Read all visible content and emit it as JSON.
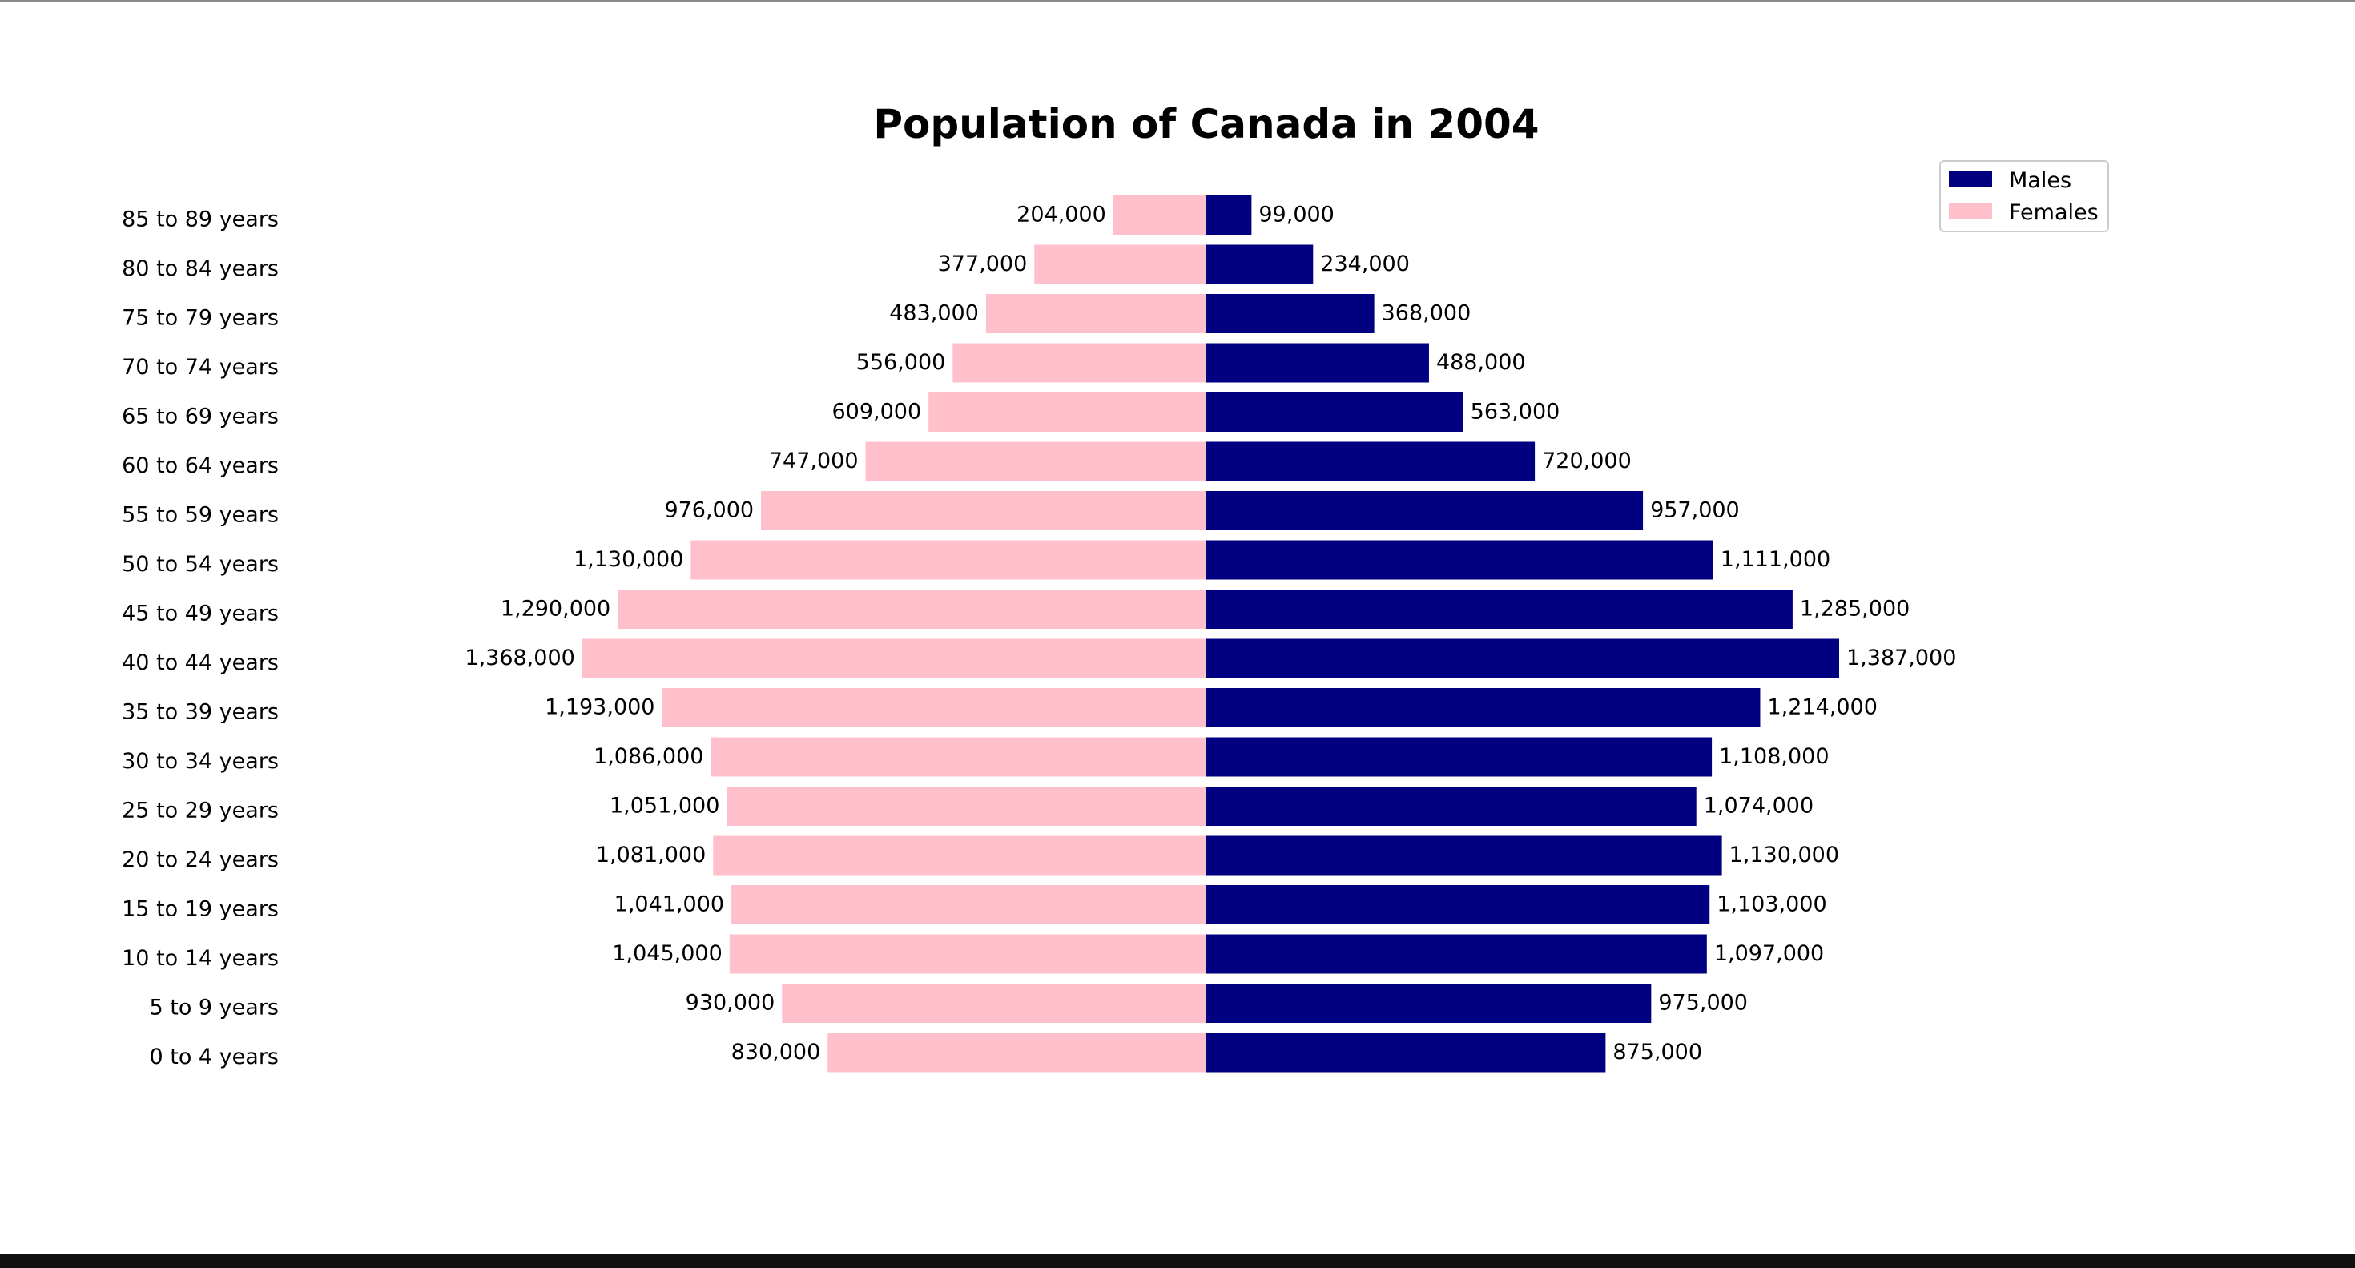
{
  "chart_data": {
    "type": "bar",
    "orientation": "horizontal-diverging",
    "title": "Population of Canada in 2004",
    "categories": [
      "0 to 4 years",
      "5 to 9 years",
      "10 to 14 years",
      "15 to 19 years",
      "20 to 24 years",
      "25 to 29 years",
      "30 to 34 years",
      "35 to 39 years",
      "40 to 44 years",
      "45 to 49 years",
      "50 to 54 years",
      "55 to 59 years",
      "60 to 64 years",
      "65 to 69 years",
      "70 to 74 years",
      "75 to 79 years",
      "80 to 84 years",
      "85 to 89 years"
    ],
    "series": [
      {
        "name": "Males",
        "color": "#000080",
        "values": [
          875000,
          975000,
          1097000,
          1103000,
          1130000,
          1074000,
          1108000,
          1214000,
          1387000,
          1285000,
          1111000,
          957000,
          720000,
          563000,
          488000,
          368000,
          234000,
          99000
        ],
        "labels": [
          "875,000",
          "975,000",
          "1,097,000",
          "1,103,000",
          "1,130,000",
          "1,074,000",
          "1,108,000",
          "1,214,000",
          "1,387,000",
          "1,285,000",
          "1,111,000",
          "957,000",
          "720,000",
          "563,000",
          "488,000",
          "368,000",
          "234,000",
          "99,000"
        ]
      },
      {
        "name": "Females",
        "color": "#ffc0cb",
        "values": [
          830000,
          930000,
          1045000,
          1041000,
          1081000,
          1051000,
          1086000,
          1193000,
          1368000,
          1290000,
          1130000,
          976000,
          747000,
          609000,
          556000,
          483000,
          377000,
          204000
        ],
        "labels": [
          "830,000",
          "930,000",
          "1,045,000",
          "1,041,000",
          "1,081,000",
          "1,051,000",
          "1,086,000",
          "1,193,000",
          "1,368,000",
          "1,290,000",
          "1,130,000",
          "976,000",
          "747,000",
          "609,000",
          "556,000",
          "483,000",
          "377,000",
          "204,000"
        ]
      }
    ],
    "legend": {
      "position": "top-right",
      "entries": [
        "Males",
        "Females"
      ]
    },
    "grid": false,
    "axes_visible": false
  }
}
